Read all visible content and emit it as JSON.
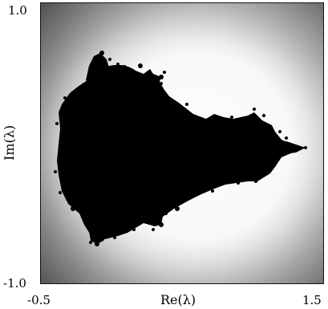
{
  "figure": {
    "x_axis": {
      "label": "Re(λ)",
      "min_label": "-0.5",
      "max_label": "1.5"
    },
    "y_axis": {
      "label": "Im(λ)",
      "min_label": "-1.0",
      "max_label": "1.0"
    },
    "colors": {
      "set_fill": "#000000",
      "glow_inner": "#ffffff",
      "glow_outer": "#5a5a5a",
      "frame": "#111111"
    }
  }
}
